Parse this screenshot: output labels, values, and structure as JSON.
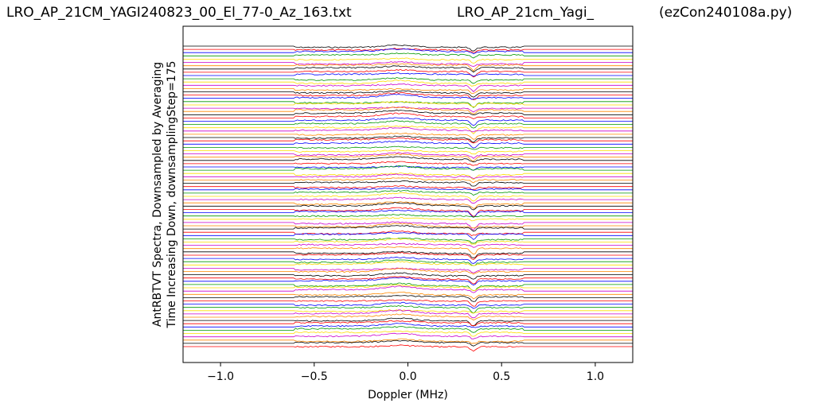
{
  "titles": {
    "left": "LRO_AP_21CM_YAGI240823_00_El_77-0_Az_163.txt",
    "middle": "LRO_AP_21cm_Yagi_",
    "right": "(ezCon240108a.py)"
  },
  "chart_data": {
    "type": "line",
    "xlabel": "Doppler (MHz)",
    "ylabel_line1": "AntRBTVT Spectra, Downsampled by Averaging",
    "ylabel_line2": "Time Increasing Down, downsamplingStep=175",
    "xlim": [
      -1.2,
      1.2
    ],
    "xticks": [
      -1.0,
      -0.5,
      0.0,
      0.5,
      1.0
    ],
    "xtick_labels": [
      "−1.0",
      "−0.5",
      "0.0",
      "0.5",
      "1.0"
    ],
    "yticks_shown": false,
    "trace_count": 93,
    "trace_colors": [
      "#000000",
      "#ff0000",
      "#0000ff",
      "#009900",
      "#ffdd00",
      "#cc00cc",
      "#ff8800"
    ],
    "band_edges_mhz": [
      -0.61,
      0.61
    ],
    "features": [
      {
        "center_mhz": 0.35,
        "description": "dip"
      },
      {
        "center_mhz": -0.05,
        "description": "hump"
      }
    ]
  }
}
